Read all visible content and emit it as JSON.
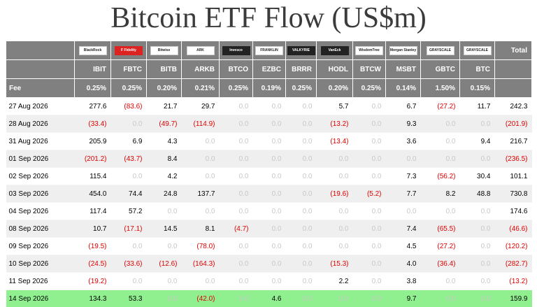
{
  "title": "Bitcoin ETF Flow (US$m)",
  "header": {
    "fee_label": "Fee",
    "total_label": "Total",
    "funds": [
      {
        "ticker": "IBIT",
        "fee": "0.25%",
        "logo": "blackrock-logo"
      },
      {
        "ticker": "FBTC",
        "fee": "0.25%",
        "logo": "fidelity-logo"
      },
      {
        "ticker": "BITB",
        "fee": "0.20%",
        "logo": "bitwise-logo"
      },
      {
        "ticker": "ARKB",
        "fee": "0.21%",
        "logo": "ark-logo"
      },
      {
        "ticker": "BTCO",
        "fee": "0.25%",
        "logo": "invesco-logo"
      },
      {
        "ticker": "EZBC",
        "fee": "0.19%",
        "logo": "franklin-logo"
      },
      {
        "ticker": "BRRR",
        "fee": "0.25%",
        "logo": "valkyrie-logo"
      },
      {
        "ticker": "HODL",
        "fee": "0.20%",
        "logo": "vaneck-logo"
      },
      {
        "ticker": "BTCW",
        "fee": "0.25%",
        "logo": "wisdomtree-logo"
      },
      {
        "ticker": "MSBT",
        "fee": "0.14%",
        "logo": "morgan-stanley-logo"
      },
      {
        "ticker": "GBTC",
        "fee": "1.50%",
        "logo": "grayscale-logo"
      },
      {
        "ticker": "BTC",
        "fee": "0.15%",
        "logo": "grayscale-mini-logo"
      }
    ]
  },
  "rows": [
    {
      "date": "27 Aug 2026",
      "values": [
        "277.6",
        "(83.6)",
        "21.7",
        "29.7",
        "0.0",
        "0.0",
        "0.0",
        "5.7",
        "0.0",
        "6.7",
        "(27.2)",
        "11.7"
      ],
      "total": "242.3"
    },
    {
      "date": "28 Aug 2026",
      "values": [
        "(33.4)",
        "0.0",
        "(49.7)",
        "(114.9)",
        "0.0",
        "0.0",
        "0.0",
        "(13.2)",
        "0.0",
        "9.3",
        "0.0",
        "0.0"
      ],
      "total": "(201.9)"
    },
    {
      "date": "31 Aug 2026",
      "values": [
        "205.9",
        "6.9",
        "4.3",
        "0.0",
        "0.0",
        "0.0",
        "0.0",
        "(13.4)",
        "0.0",
        "3.6",
        "0.0",
        "9.4"
      ],
      "total": "216.7"
    },
    {
      "date": "01 Sep 2026",
      "values": [
        "(201.2)",
        "(43.7)",
        "8.4",
        "0.0",
        "0.0",
        "0.0",
        "0.0",
        "0.0",
        "0.0",
        "0.0",
        "0.0",
        "0.0"
      ],
      "total": "(236.5)"
    },
    {
      "date": "02 Sep 2026",
      "values": [
        "115.4",
        "0.0",
        "4.2",
        "0.0",
        "0.0",
        "0.0",
        "0.0",
        "0.0",
        "0.0",
        "7.3",
        "(56.2)",
        "30.4"
      ],
      "total": "101.1"
    },
    {
      "date": "03 Sep 2026",
      "values": [
        "454.0",
        "74.4",
        "24.8",
        "137.7",
        "0.0",
        "0.0",
        "0.0",
        "(19.6)",
        "(5.2)",
        "7.7",
        "8.2",
        "48.8"
      ],
      "total": "730.8"
    },
    {
      "date": "04 Sep 2026",
      "values": [
        "117.4",
        "57.2",
        "0.0",
        "0.0",
        "0.0",
        "0.0",
        "0.0",
        "0.0",
        "0.0",
        "0.0",
        "0.0",
        "0.0"
      ],
      "total": "174.6"
    },
    {
      "date": "08 Sep 2026",
      "values": [
        "10.7",
        "(17.1)",
        "14.5",
        "8.1",
        "(4.7)",
        "0.0",
        "0.0",
        "0.0",
        "0.0",
        "7.4",
        "(65.5)",
        "0.0"
      ],
      "total": "(46.6)"
    },
    {
      "date": "09 Sep 2026",
      "values": [
        "(19.5)",
        "0.0",
        "0.0",
        "(78.0)",
        "0.0",
        "0.0",
        "0.0",
        "0.0",
        "0.0",
        "4.5",
        "(27.2)",
        "0.0"
      ],
      "total": "(120.2)"
    },
    {
      "date": "10 Sep 2026",
      "values": [
        "(24.5)",
        "(33.6)",
        "(12.6)",
        "(164.3)",
        "0.0",
        "0.0",
        "0.0",
        "(15.3)",
        "0.0",
        "4.0",
        "(36.4)",
        "0.0"
      ],
      "total": "(282.7)"
    },
    {
      "date": "11 Sep 2026",
      "values": [
        "(19.2)",
        "0.0",
        "0.0",
        "0.0",
        "0.0",
        "0.0",
        "0.0",
        "2.2",
        "0.0",
        "3.8",
        "0.0",
        "0.0"
      ],
      "total": "(13.2)"
    },
    {
      "date": "14 Sep 2026",
      "values": [
        "134.3",
        "53.3",
        "0.0",
        "(42.0)",
        "0.0",
        "4.6",
        "0.0",
        "0.0",
        "0.0",
        "9.7",
        "0.0",
        "0.0"
      ],
      "total": "159.9",
      "highlight": true
    }
  ],
  "colors": {
    "header_bg": "#808080",
    "negative": "#e00000",
    "zero": "#c8c8c8",
    "highlight": "#90f090",
    "zebra": "#efefef"
  }
}
